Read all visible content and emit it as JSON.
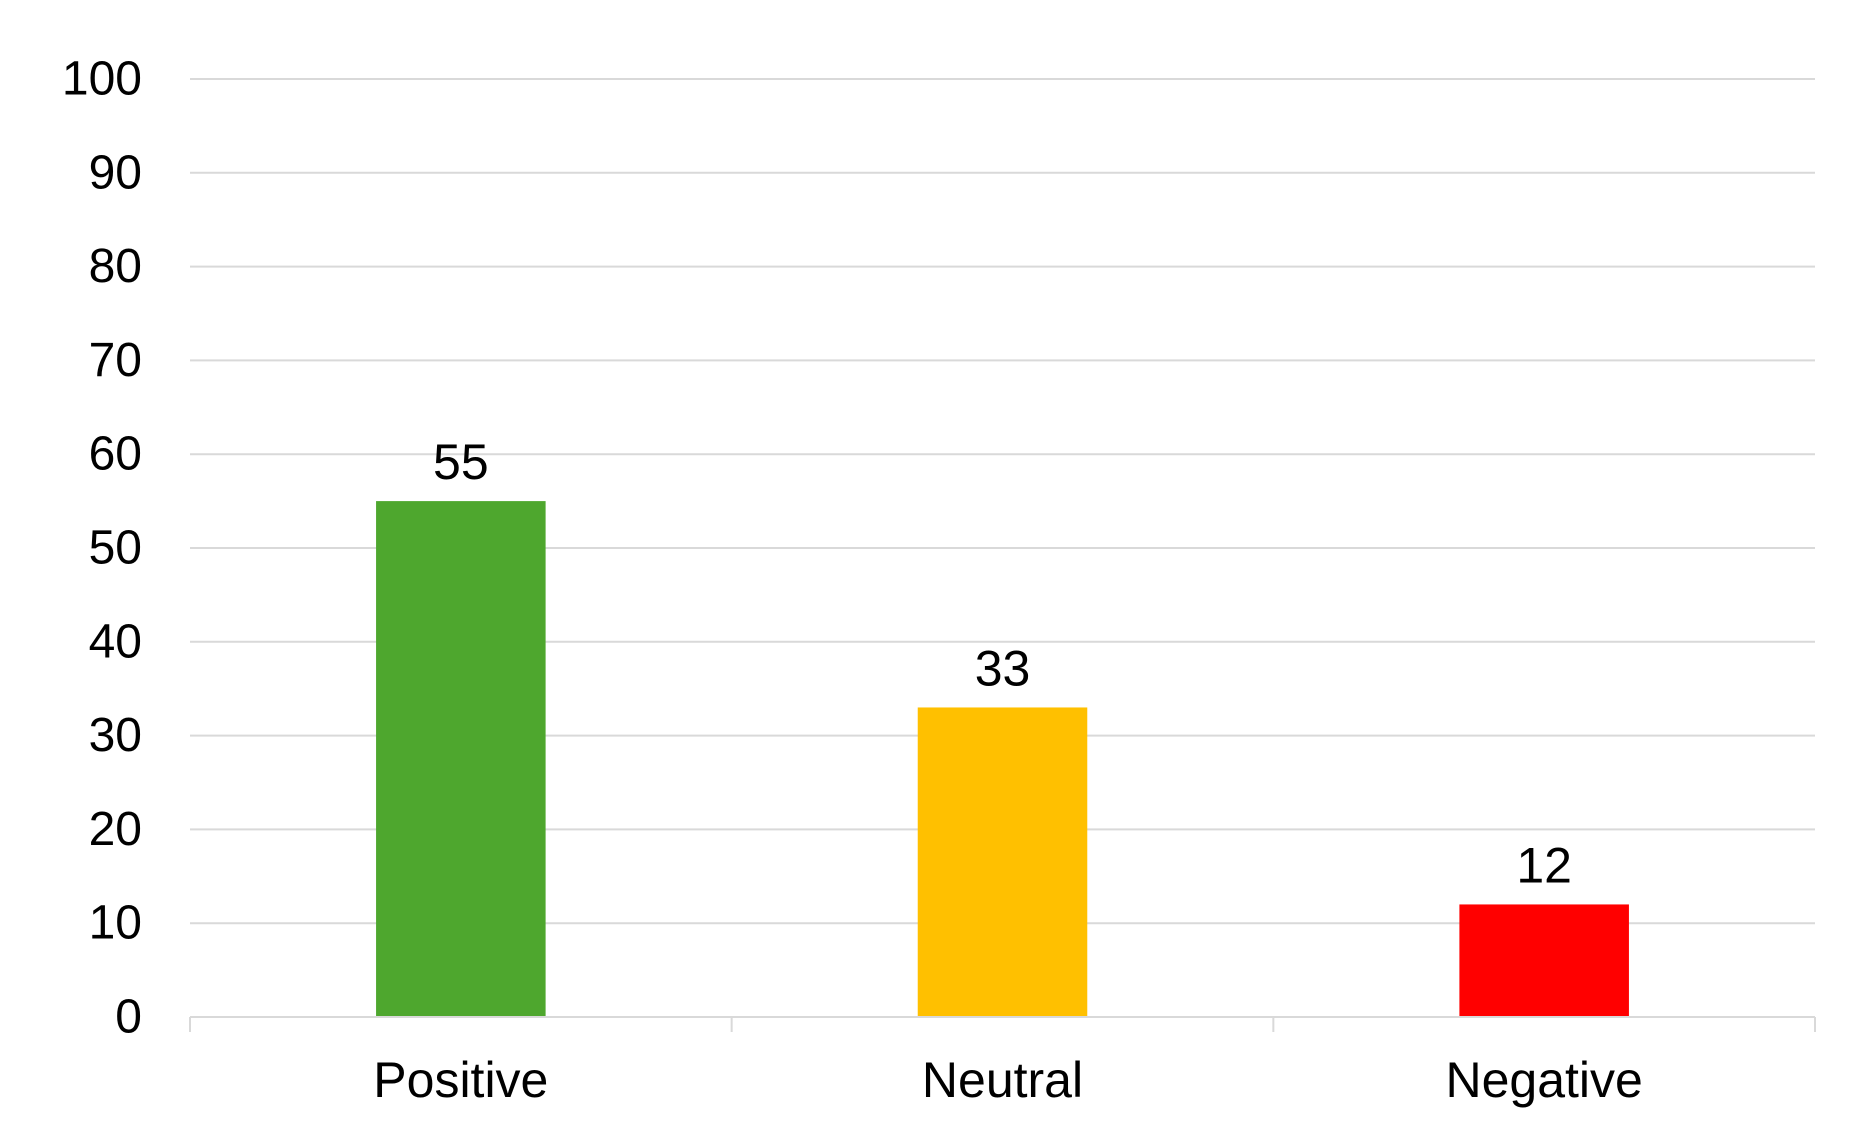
{
  "chart_data": {
    "type": "bar",
    "title": "",
    "xlabel": "",
    "ylabel": "",
    "categories": [
      "Positive",
      "Neutral",
      "Negative"
    ],
    "values": [
      55,
      33,
      12
    ],
    "data_labels": [
      "55",
      "33",
      "12"
    ],
    "colors": [
      "#4ea72e",
      "#ffc000",
      "#ff0000"
    ],
    "ylim": [
      0,
      100
    ],
    "y_ticks": [
      0,
      10,
      20,
      30,
      40,
      50,
      60,
      70,
      80,
      90,
      100
    ],
    "y_tick_labels": [
      "0",
      "10",
      "20",
      "30",
      "40",
      "50",
      "60",
      "70",
      "80",
      "90",
      "100"
    ],
    "grid": true,
    "legend": "none"
  }
}
